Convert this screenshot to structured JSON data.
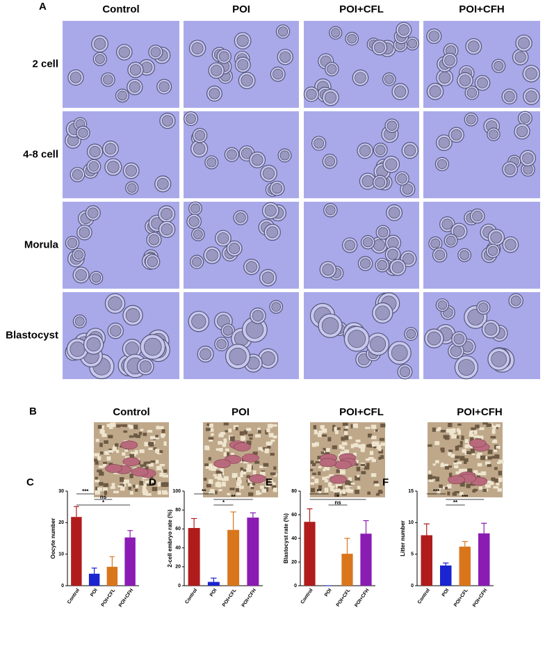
{
  "panel_a": {
    "label": "A",
    "columns": [
      "Control",
      "POI",
      "POI+CFL",
      "POI+CFH"
    ],
    "rows": [
      "2 cell",
      "4-8 cell",
      "Morula",
      "Blastocyst"
    ]
  },
  "panel_b": {
    "label": "B",
    "columns": [
      "Control",
      "POI",
      "POI+CFL",
      "POI+CFH"
    ]
  },
  "chart_data": [
    {
      "label": "C",
      "type": "bar",
      "y_label": "Oocyte number",
      "categories": [
        "Control",
        "POI",
        "POI+CFL",
        "POI+CFH"
      ],
      "values": [
        21.8,
        3.8,
        6,
        15.3
      ],
      "errors": [
        3.3,
        1.8,
        3.2,
        2.2
      ],
      "colors": [
        "#b01c1c",
        "#1a24d0",
        "#d9761c",
        "#8a1cb4"
      ],
      "ylim": [
        0,
        30
      ],
      "yticks": [
        0,
        10,
        20,
        30
      ],
      "significance": [
        {
          "from": 0,
          "to": 1,
          "label": "***"
        },
        {
          "from": 1,
          "to": 2,
          "label": "ns"
        },
        {
          "from": 0,
          "to": 3,
          "label": "*"
        }
      ]
    },
    {
      "label": "D",
      "type": "bar",
      "y_label": "2-cell embryo rate (%)",
      "categories": [
        "Control",
        "POI",
        "POI+CFL",
        "POI+CFH"
      ],
      "values": [
        61,
        4,
        59,
        72
      ],
      "errors": [
        10,
        4,
        19,
        5
      ],
      "colors": [
        "#b01c1c",
        "#1a24d0",
        "#d9761c",
        "#8a1cb4"
      ],
      "ylim": [
        0,
        100
      ],
      "yticks": [
        0,
        20,
        40,
        60,
        80,
        100
      ],
      "significance": [
        {
          "from": 0,
          "to": 1,
          "label": "**"
        },
        {
          "from": 1,
          "to": 3,
          "label": "**"
        },
        {
          "from": 1,
          "to": 2,
          "label": "*"
        }
      ]
    },
    {
      "label": "E",
      "type": "bar",
      "y_label": "Blastocyst  rate (%)",
      "categories": [
        "Control",
        "POI",
        "POI+CFL",
        "POI+CFH"
      ],
      "values": [
        54,
        0,
        27,
        44
      ],
      "errors": [
        11,
        0,
        13,
        11
      ],
      "colors": [
        "#b01c1c",
        "#1a24d0",
        "#d9761c",
        "#8a1cb4"
      ],
      "ylim": [
        0,
        80
      ],
      "yticks": [
        0,
        20,
        40,
        60,
        80
      ],
      "significance": [
        {
          "from": 0,
          "to": 1,
          "label": "**"
        },
        {
          "from": 0,
          "to": 3,
          "label": "*"
        },
        {
          "from": 1,
          "to": 2,
          "label": "ns"
        }
      ]
    },
    {
      "label": "F",
      "type": "bar",
      "y_label": "Litter number",
      "categories": [
        "Control",
        "POI",
        "POI+CFL",
        "POI+CFH"
      ],
      "values": [
        8,
        3.2,
        6.2,
        8.3
      ],
      "errors": [
        1.8,
        0.4,
        0.8,
        1.6
      ],
      "colors": [
        "#b01c1c",
        "#1a24d0",
        "#d9761c",
        "#8a1cb4"
      ],
      "ylim": [
        0,
        15
      ],
      "yticks": [
        0,
        5,
        10,
        15
      ],
      "significance": [
        {
          "from": 0,
          "to": 1,
          "label": "***"
        },
        {
          "from": 1,
          "to": 3,
          "label": "***"
        },
        {
          "from": 1,
          "to": 2,
          "label": "**"
        }
      ]
    }
  ]
}
